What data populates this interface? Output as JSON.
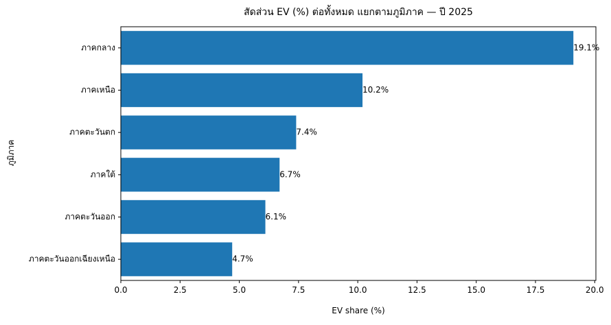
{
  "chart_data": {
    "type": "bar",
    "orientation": "horizontal",
    "title": "สัดส่วน EV (%) ต่อทั้งหมด แยกตามภูมิภาค — ปี 2025",
    "xlabel": "EV share (%)",
    "ylabel": "ภูมิภาค",
    "categories": [
      "ภาคกลาง",
      "ภาคเหนือ",
      "ภาคตะวันตก",
      "ภาคใต้",
      "ภาคตะวันออก",
      "ภาคตะวันออกเฉียงเหนือ"
    ],
    "values": [
      19.1,
      10.2,
      7.4,
      6.7,
      6.1,
      4.7
    ],
    "value_labels": [
      "19.1%",
      "10.2%",
      "7.4%",
      "6.7%",
      "6.1%",
      "4.7%"
    ],
    "xlim": [
      0,
      20.05
    ],
    "xticks": [
      0.0,
      2.5,
      5.0,
      7.5,
      10.0,
      12.5,
      15.0,
      17.5,
      20.0
    ],
    "xtick_labels": [
      "0.0",
      "2.5",
      "5.0",
      "7.5",
      "10.0",
      "12.5",
      "15.0",
      "17.5",
      "20.0"
    ],
    "grid": false,
    "legend": "none",
    "bar_color": "#1f77b4"
  }
}
